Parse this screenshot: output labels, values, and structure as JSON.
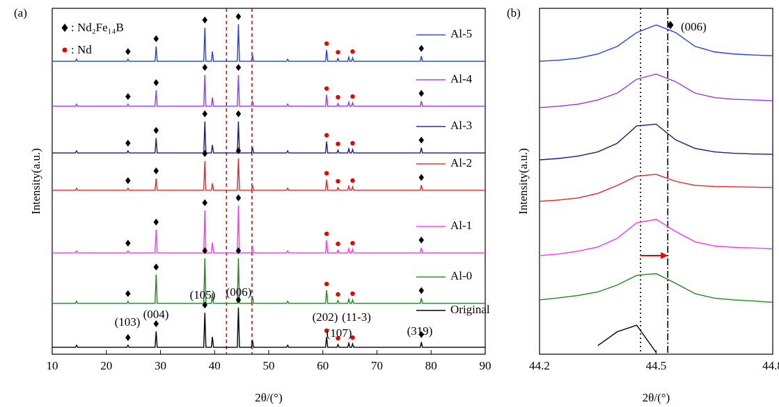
{
  "chart_data": [
    {
      "type": "line",
      "panel_label": "(a)",
      "xlabel": "2θ/(°)",
      "ylabel": "Intensity(a.u.)",
      "xlim": [
        10,
        90
      ],
      "xticks": [
        10,
        20,
        30,
        40,
        50,
        60,
        70,
        80,
        90
      ],
      "ylim": [
        0,
        100
      ],
      "vlines": [
        42.2,
        46.9
      ],
      "legend": [
        ": Nd₂Fe₁₄B",
        ": Nd"
      ],
      "peak_labels": [
        "(103)",
        "(004)",
        "(105)",
        "(006)",
        "(202)",
        "(11-3)",
        "(107)",
        "(319)"
      ],
      "x": [
        10,
        14.3,
        14.5,
        14.7,
        23.8,
        24,
        24.2,
        29,
        29.2,
        29.4,
        38,
        38.2,
        38.4,
        39.4,
        39.6,
        39.8,
        44.2,
        44.4,
        44.6,
        46.8,
        47,
        47.2,
        53.3,
        53.5,
        53.7,
        60.5,
        60.7,
        60.9,
        62.6,
        62.8,
        63,
        64.6,
        64.8,
        65,
        65.3,
        65.5,
        65.7,
        78,
        78.2,
        78.4,
        90
      ],
      "series": [
        {
          "name": "Original",
          "color": "#000000",
          "values": [
            2,
            2,
            2.6,
            2,
            2,
            2.6,
            2,
            2,
            6.6,
            2,
            2,
            12,
            2,
            2,
            5,
            2,
            2,
            13.5,
            2,
            2,
            4,
            2,
            2,
            2.6,
            2,
            2,
            5,
            2,
            2,
            2.8,
            2,
            2,
            3.2,
            2,
            2,
            3,
            2,
            2,
            3.5,
            2,
            2
          ]
        },
        {
          "name": "Al-0",
          "color": "#1a8a1a",
          "values": [
            14.7,
            14.7,
            15.3,
            14.7,
            14.7,
            15.3,
            14.7,
            14.7,
            23,
            14.7,
            14.7,
            27.7,
            14.7,
            14.7,
            17.7,
            14.7,
            14.7,
            27.7,
            14.7,
            14.7,
            16.7,
            14.7,
            14.7,
            15.3,
            14.7,
            14.7,
            18.5,
            14.7,
            14.7,
            15.5,
            14.7,
            14.7,
            15.9,
            14.7,
            14.7,
            15.7,
            14.7,
            14.7,
            16.2,
            14.7,
            14.7
          ]
        },
        {
          "name": "Al-1",
          "color": "#ff33ff",
          "values": [
            29.3,
            29.3,
            29.9,
            29.3,
            29.3,
            29.9,
            29.3,
            29.3,
            36,
            29.3,
            29.3,
            41.6,
            29.3,
            29.3,
            32.3,
            29.3,
            29.3,
            43,
            29.3,
            29.3,
            31.3,
            29.3,
            29.3,
            29.9,
            29.3,
            29.3,
            33,
            29.3,
            29.3,
            30.1,
            29.3,
            29.3,
            30.5,
            29.3,
            29.3,
            30.3,
            29.3,
            29.3,
            30.8,
            29.3,
            29.3
          ]
        },
        {
          "name": "Al-2",
          "color": "#ee2222",
          "values": [
            47.4,
            47.4,
            48,
            47.4,
            47.4,
            48,
            47.4,
            47.4,
            50.8,
            47.4,
            47.4,
            55.8,
            47.4,
            47.4,
            49.4,
            47.4,
            47.4,
            56.6,
            47.4,
            47.4,
            48.8,
            47.4,
            47.4,
            48,
            47.4,
            47.4,
            50.5,
            47.4,
            47.4,
            48.2,
            47.4,
            47.4,
            48.6,
            47.4,
            47.4,
            48.4,
            47.4,
            47.4,
            48.9,
            47.4,
            47.4
          ]
        },
        {
          "name": "Al-3",
          "color": "#1a1a8c",
          "values": [
            58.2,
            58.2,
            58.8,
            58.2,
            58.2,
            58.8,
            58.2,
            58.2,
            62.5,
            58.2,
            58.2,
            67.3,
            58.2,
            58.2,
            60.5,
            58.2,
            58.2,
            67.3,
            58.2,
            58.2,
            59.8,
            58.2,
            58.2,
            58.8,
            58.2,
            58.2,
            61.5,
            58.2,
            58.2,
            59,
            58.2,
            58.2,
            59.4,
            58.2,
            58.2,
            59.2,
            58.2,
            58.2,
            59.7,
            58.2,
            58.2
          ]
        },
        {
          "name": "Al-4",
          "color": "#9933ff",
          "values": [
            71.7,
            71.7,
            72.3,
            71.7,
            71.7,
            72.3,
            71.7,
            71.7,
            76.3,
            71.7,
            71.7,
            80.7,
            71.7,
            71.7,
            74.2,
            71.7,
            71.7,
            80.7,
            71.7,
            71.7,
            73.3,
            71.7,
            71.7,
            72.3,
            71.7,
            71.7,
            75,
            71.7,
            71.7,
            72.5,
            71.7,
            71.7,
            72.9,
            71.7,
            71.7,
            72.7,
            71.7,
            71.7,
            73.2,
            71.7,
            71.7
          ]
        },
        {
          "name": "Al-5",
          "color": "#1f3fff",
          "values": [
            84.7,
            84.7,
            85.3,
            84.7,
            84.7,
            85.3,
            84.7,
            84.7,
            89,
            84.7,
            84.7,
            94.4,
            84.7,
            84.7,
            87.5,
            84.7,
            84.7,
            95.4,
            84.7,
            84.7,
            86.5,
            84.7,
            84.7,
            85.3,
            84.7,
            84.7,
            88,
            84.7,
            84.7,
            85.5,
            84.7,
            84.7,
            85.9,
            84.7,
            84.7,
            85.7,
            84.7,
            84.7,
            86.2,
            84.7,
            84.7
          ]
        }
      ]
    },
    {
      "type": "line",
      "panel_label": "(b)",
      "xlabel": "2θ/(°)",
      "ylabel": "Intensity(a.u.)",
      "xlim": [
        44.2,
        44.8
      ],
      "xticks": [
        44.2,
        44.5,
        44.8
      ],
      "ylim": [
        0,
        100
      ],
      "vlines": [
        44.46,
        44.53
      ],
      "annotation": "(006)",
      "x": [
        44.2,
        44.25,
        44.3,
        44.35,
        44.4,
        44.45,
        44.5,
        44.55,
        44.6,
        44.65,
        44.7,
        44.75,
        44.8
      ],
      "series": [
        {
          "name": "Original",
          "color": "#000000",
          "values": [
            null,
            null,
            null,
            2.5,
            6.5,
            8.4,
            0.5,
            null,
            null,
            null,
            null,
            null,
            null
          ]
        },
        {
          "name": "Al-0",
          "color": "#1a8a1a",
          "values": [
            15.7,
            16.3,
            17,
            18,
            20,
            22.8,
            23.3,
            20.5,
            17.5,
            16.2,
            15.7,
            15.4,
            15
          ]
        },
        {
          "name": "Al-1",
          "color": "#ff33ff",
          "values": [
            28.5,
            29,
            29.8,
            31,
            33.5,
            38,
            39,
            35.5,
            32.5,
            31.3,
            30.9,
            30.7,
            30.5
          ]
        },
        {
          "name": "Al-2",
          "color": "#ee2222",
          "values": [
            44.2,
            44.6,
            45.2,
            46.5,
            48.8,
            51.5,
            52,
            50,
            48.8,
            48.5,
            48.4,
            48.3,
            48.2
          ]
        },
        {
          "name": "Al-3",
          "color": "#1a1a8c",
          "values": [
            56.2,
            56.6,
            57.3,
            58.5,
            61,
            66,
            66.5,
            62,
            59.5,
            58.5,
            58.1,
            57.9,
            57.8
          ]
        },
        {
          "name": "Al-4",
          "color": "#9933ff",
          "values": [
            71.3,
            71.7,
            72.3,
            73.5,
            75.5,
            79.5,
            81,
            78.8,
            75.5,
            74.2,
            73.7,
            73.5,
            73.3
          ]
        },
        {
          "name": "Al-5",
          "color": "#1f3fff",
          "values": [
            84.7,
            85,
            85.6,
            86.8,
            89,
            93,
            95.2,
            93,
            89,
            87.4,
            86.8,
            86.5,
            86.3
          ]
        }
      ]
    }
  ]
}
